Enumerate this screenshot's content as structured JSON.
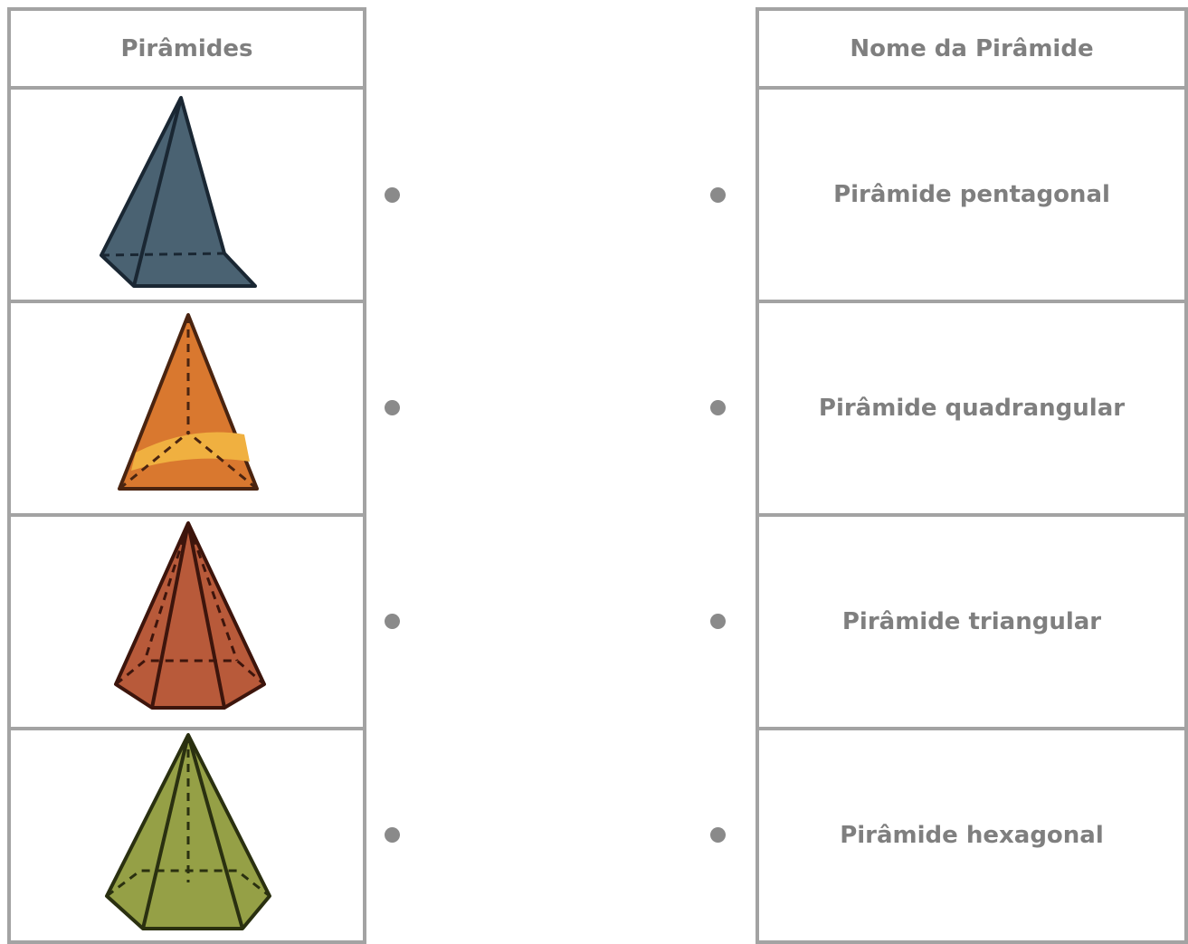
{
  "left": {
    "header": "Pirâmides"
  },
  "right": {
    "header": "Nome da Pirâmide",
    "rows": [
      "Pirâmide pentagonal",
      "Pirâmide quadrangular",
      "Pirâmide triangular",
      "Pirâmide hexagonal"
    ]
  }
}
